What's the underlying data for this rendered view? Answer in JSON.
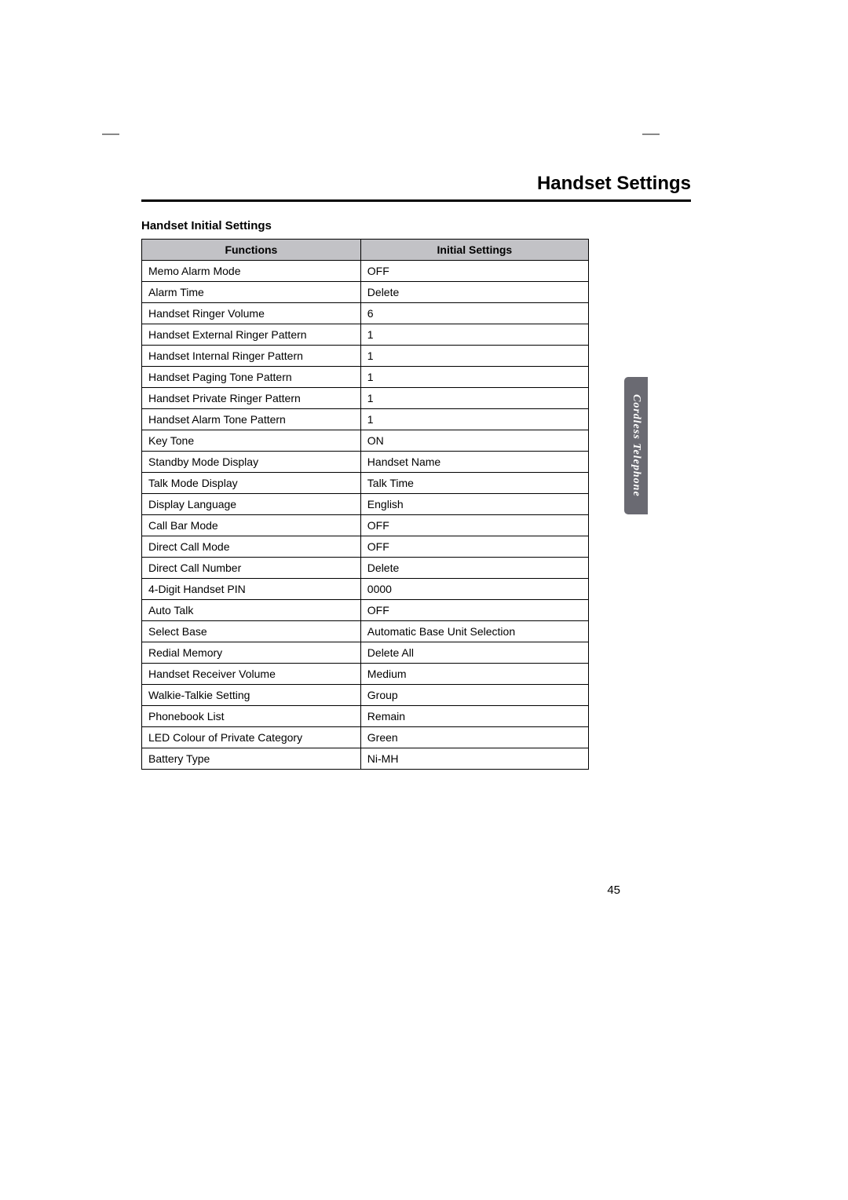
{
  "page_title": "Handset Settings",
  "subtitle": "Handset Initial Settings",
  "side_tab": "Cordless Telephone",
  "page_number": "45",
  "columns": [
    "Functions",
    "Initial Settings"
  ],
  "rows": [
    {
      "function": "Memo Alarm Mode",
      "setting": "OFF"
    },
    {
      "function": "Alarm Time",
      "setting": "Delete"
    },
    {
      "function": "Handset Ringer Volume",
      "setting": "6"
    },
    {
      "function": "Handset External Ringer Pattern",
      "setting": "1"
    },
    {
      "function": "Handset Internal Ringer Pattern",
      "setting": "1"
    },
    {
      "function": "Handset Paging Tone Pattern",
      "setting": "1"
    },
    {
      "function": "Handset Private Ringer Pattern",
      "setting": "1"
    },
    {
      "function": "Handset Alarm Tone Pattern",
      "setting": "1"
    },
    {
      "function": "Key Tone",
      "setting": "ON"
    },
    {
      "function": "Standby Mode Display",
      "setting": "Handset Name"
    },
    {
      "function": "Talk Mode Display",
      "setting": "Talk Time"
    },
    {
      "function": "Display Language",
      "setting": "English"
    },
    {
      "function": "Call Bar Mode",
      "setting": "OFF"
    },
    {
      "function": "Direct Call Mode",
      "setting": "OFF"
    },
    {
      "function": "Direct Call Number",
      "setting": "Delete"
    },
    {
      "function": "4-Digit Handset PIN",
      "setting": "0000"
    },
    {
      "function": "Auto Talk",
      "setting": "OFF"
    },
    {
      "function": "Select Base",
      "setting": "Automatic Base Unit Selection"
    },
    {
      "function": "Redial Memory",
      "setting": "Delete All"
    },
    {
      "function": "Handset Receiver Volume",
      "setting": "Medium"
    },
    {
      "function": "Walkie-Talkie Setting",
      "setting": "Group"
    },
    {
      "function": "Phonebook List",
      "setting": "Remain"
    },
    {
      "function": "LED Colour of Private Category",
      "setting": "Green"
    },
    {
      "function": "Battery Type",
      "setting": "Ni-MH"
    }
  ],
  "style": {
    "header_bg": "#c2c2c6",
    "sidebar_bg": "#6a6a72",
    "border_color": "#000000",
    "font_size_cell": 14,
    "font_size_title": 24
  }
}
